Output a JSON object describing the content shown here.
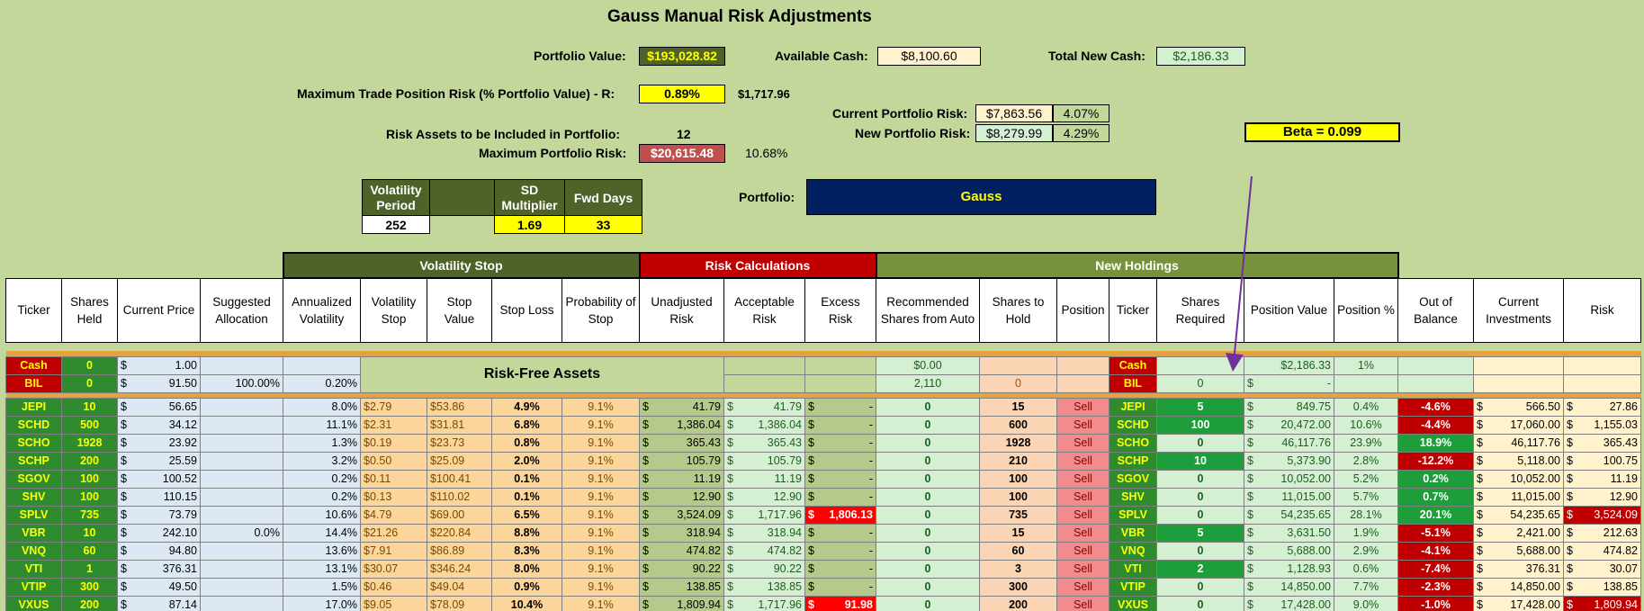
{
  "title": "Gauss Manual Risk Adjustments",
  "summary": {
    "portfolio_value_label": "Portfolio Value:",
    "portfolio_value": "$193,028.82",
    "available_cash_label": "Available Cash:",
    "available_cash": "$8,100.60",
    "total_new_cash_label": "Total New Cash:",
    "total_new_cash": "$2,186.33",
    "max_trade_risk_label": "Maximum Trade Position Risk (% Portfolio Value) - R:",
    "max_trade_risk_pct": "0.89%",
    "max_trade_risk_value": "$1,717.96",
    "current_risk_label": "Current Portfolio Risk:",
    "current_risk_value": "$7,863.56",
    "current_risk_pct": "4.07%",
    "new_risk_label": "New Portfolio Risk:",
    "new_risk_value": "$8,279.99",
    "new_risk_pct": "4.29%",
    "risk_assets_label": "Risk Assets to be Included in Portfolio:",
    "risk_assets_count": "12",
    "max_portfolio_risk_label": "Maximum Portfolio Risk:",
    "max_portfolio_risk_value": "$20,615.48",
    "max_portfolio_risk_pct": "10.68%",
    "beta": "Beta = 0.099",
    "portfolio_label": "Portfolio:",
    "portfolio_name": "Gauss"
  },
  "volatility": {
    "h1": "Volatility Period",
    "h2": "",
    "h3": "SD Multiplier",
    "h4": "Fwd Days",
    "v1": "252",
    "v3": "1.69",
    "v4": "33"
  },
  "groups": {
    "volatility_stop": "Volatility Stop",
    "risk_calculations": "Risk Calculations",
    "new_holdings": "New Holdings"
  },
  "headers": [
    "Ticker",
    "Shares Held",
    "Current Price",
    "Suggested Allocation",
    "Annualized Volatility",
    "Volatility Stop",
    "Stop Value",
    "Stop Loss",
    "Probability of Stop",
    "Unadjusted Risk",
    "Acceptable Risk",
    "Excess Risk",
    "Recommended Shares from Auto",
    "Shares to Hold",
    "Position",
    "Ticker",
    "Shares Required",
    "Position Value",
    "Position %",
    "Out of Balance",
    "Current Investments",
    "Risk"
  ],
  "risk_free_label": "Risk-Free Assets",
  "cash_row": {
    "ticker": "Cash",
    "shares": "0",
    "price": "1.00",
    "rec": "$0.00",
    "ticker2": "Cash",
    "pos_value": "$2,186.33",
    "pos_pct": "1%"
  },
  "bil_row": {
    "ticker": "BIL",
    "shares": "0",
    "price": "91.50",
    "alloc": "100.00%",
    "vol": "0.20%",
    "rec": "2,110",
    "hold": "0",
    "ticker2": "BIL",
    "req": "0",
    "pos_value": "-"
  },
  "rows": [
    {
      "ticker": "JEPI",
      "shares": "10",
      "price": "56.65",
      "alloc": "",
      "vol": "8.0%",
      "vstop": "$2.79",
      "sval": "$53.86",
      "sloss": "4.9%",
      "prob": "9.1%",
      "unadj": "41.79",
      "accept": "41.79",
      "excess": "-",
      "rec": "0",
      "hold": "15",
      "pos": "Sell",
      "ticker2": "JEPI",
      "req": "5",
      "pval": "849.75",
      "ppct": "0.4%",
      "oob": "-4.6%",
      "curinv": "566.50",
      "risk": "27.86"
    },
    {
      "ticker": "SCHD",
      "shares": "500",
      "price": "34.12",
      "alloc": "",
      "vol": "11.1%",
      "vstop": "$2.31",
      "sval": "$31.81",
      "sloss": "6.8%",
      "prob": "9.1%",
      "unadj": "1,386.04",
      "accept": "1,386.04",
      "excess": "-",
      "rec": "0",
      "hold": "600",
      "pos": "Sell",
      "ticker2": "SCHD",
      "req": "100",
      "pval": "20,472.00",
      "ppct": "10.6%",
      "oob": "-4.4%",
      "curinv": "17,060.00",
      "risk": "1,155.03"
    },
    {
      "ticker": "SCHO",
      "shares": "1928",
      "price": "23.92",
      "alloc": "",
      "vol": "1.3%",
      "vstop": "$0.19",
      "sval": "$23.73",
      "sloss": "0.8%",
      "prob": "9.1%",
      "unadj": "365.43",
      "accept": "365.43",
      "excess": "-",
      "rec": "0",
      "hold": "1928",
      "pos": "Sell",
      "ticker2": "SCHO",
      "req": "0",
      "pval": "46,117.76",
      "ppct": "23.9%",
      "oob": "18.9%",
      "curinv": "46,117.76",
      "risk": "365.43"
    },
    {
      "ticker": "SCHP",
      "shares": "200",
      "price": "25.59",
      "alloc": "",
      "vol": "3.2%",
      "vstop": "$0.50",
      "sval": "$25.09",
      "sloss": "2.0%",
      "prob": "9.1%",
      "unadj": "105.79",
      "accept": "105.79",
      "excess": "-",
      "rec": "0",
      "hold": "210",
      "pos": "Sell",
      "ticker2": "SCHP",
      "req": "10",
      "pval": "5,373.90",
      "ppct": "2.8%",
      "oob": "-12.2%",
      "curinv": "5,118.00",
      "risk": "100.75"
    },
    {
      "ticker": "SGOV",
      "shares": "100",
      "price": "100.52",
      "alloc": "",
      "vol": "0.2%",
      "vstop": "$0.11",
      "sval": "$100.41",
      "sloss": "0.1%",
      "prob": "9.1%",
      "unadj": "11.19",
      "accept": "11.19",
      "excess": "-",
      "rec": "0",
      "hold": "100",
      "pos": "Sell",
      "ticker2": "SGOV",
      "req": "0",
      "pval": "10,052.00",
      "ppct": "5.2%",
      "oob": "0.2%",
      "curinv": "10,052.00",
      "risk": "11.19"
    },
    {
      "ticker": "SHV",
      "shares": "100",
      "price": "110.15",
      "alloc": "",
      "vol": "0.2%",
      "vstop": "$0.13",
      "sval": "$110.02",
      "sloss": "0.1%",
      "prob": "9.1%",
      "unadj": "12.90",
      "accept": "12.90",
      "excess": "-",
      "rec": "0",
      "hold": "100",
      "pos": "Sell",
      "ticker2": "SHV",
      "req": "0",
      "pval": "11,015.00",
      "ppct": "5.7%",
      "oob": "0.7%",
      "curinv": "11,015.00",
      "risk": "12.90"
    },
    {
      "ticker": "SPLV",
      "shares": "735",
      "price": "73.79",
      "alloc": "",
      "vol": "10.6%",
      "vstop": "$4.79",
      "sval": "$69.00",
      "sloss": "6.5%",
      "prob": "9.1%",
      "unadj": "3,524.09",
      "accept": "1,717.96",
      "excess": "1,806.13",
      "rec": "0",
      "hold": "735",
      "pos": "Sell",
      "ticker2": "SPLV",
      "req": "0",
      "pval": "54,235.65",
      "ppct": "28.1%",
      "oob": "20.1%",
      "curinv": "54,235.65",
      "risk": "3,524.09"
    },
    {
      "ticker": "VBR",
      "shares": "10",
      "price": "242.10",
      "alloc": "0.0%",
      "vol": "14.4%",
      "vstop": "$21.26",
      "sval": "$220.84",
      "sloss": "8.8%",
      "prob": "9.1%",
      "unadj": "318.94",
      "accept": "318.94",
      "excess": "-",
      "rec": "0",
      "hold": "15",
      "pos": "Sell",
      "ticker2": "VBR",
      "req": "5",
      "pval": "3,631.50",
      "ppct": "1.9%",
      "oob": "-5.1%",
      "curinv": "2,421.00",
      "risk": "212.63"
    },
    {
      "ticker": "VNQ",
      "shares": "60",
      "price": "94.80",
      "alloc": "",
      "vol": "13.6%",
      "vstop": "$7.91",
      "sval": "$86.89",
      "sloss": "8.3%",
      "prob": "9.1%",
      "unadj": "474.82",
      "accept": "474.82",
      "excess": "-",
      "rec": "0",
      "hold": "60",
      "pos": "Sell",
      "ticker2": "VNQ",
      "req": "0",
      "pval": "5,688.00",
      "ppct": "2.9%",
      "oob": "-4.1%",
      "curinv": "5,688.00",
      "risk": "474.82"
    },
    {
      "ticker": "VTI",
      "shares": "1",
      "price": "376.31",
      "alloc": "",
      "vol": "13.1%",
      "vstop": "$30.07",
      "sval": "$346.24",
      "sloss": "8.0%",
      "prob": "9.1%",
      "unadj": "90.22",
      "accept": "90.22",
      "excess": "-",
      "rec": "0",
      "hold": "3",
      "pos": "Sell",
      "ticker2": "VTI",
      "req": "2",
      "pval": "1,128.93",
      "ppct": "0.6%",
      "oob": "-7.4%",
      "curinv": "376.31",
      "risk": "30.07"
    },
    {
      "ticker": "VTIP",
      "shares": "300",
      "price": "49.50",
      "alloc": "",
      "vol": "1.5%",
      "vstop": "$0.46",
      "sval": "$49.04",
      "sloss": "0.9%",
      "prob": "9.1%",
      "unadj": "138.85",
      "accept": "138.85",
      "excess": "-",
      "rec": "0",
      "hold": "300",
      "pos": "Sell",
      "ticker2": "VTIP",
      "req": "0",
      "pval": "14,850.00",
      "ppct": "7.7%",
      "oob": "-2.3%",
      "curinv": "14,850.00",
      "risk": "138.85"
    },
    {
      "ticker": "VXUS",
      "shares": "200",
      "price": "87.14",
      "alloc": "",
      "vol": "17.0%",
      "vstop": "$9.05",
      "sval": "$78.09",
      "sloss": "10.4%",
      "prob": "9.1%",
      "unadj": "1,809.94",
      "accept": "1,717.96",
      "excess": "91.98",
      "rec": "0",
      "hold": "200",
      "pos": "Sell",
      "ticker2": "VXUS",
      "req": "0",
      "pval": "17,428.00",
      "ppct": "9.0%",
      "oob": "-1.0%",
      "curinv": "17,428.00",
      "risk": "1,809.94"
    }
  ],
  "colors": {
    "background": "#c4d79b",
    "ticker_green": "#2e8b2e",
    "ticker_text": "#ffff00",
    "excess_red": "#ff0000",
    "portfolio_navy": "#002060",
    "arrow": "#7030a0"
  }
}
